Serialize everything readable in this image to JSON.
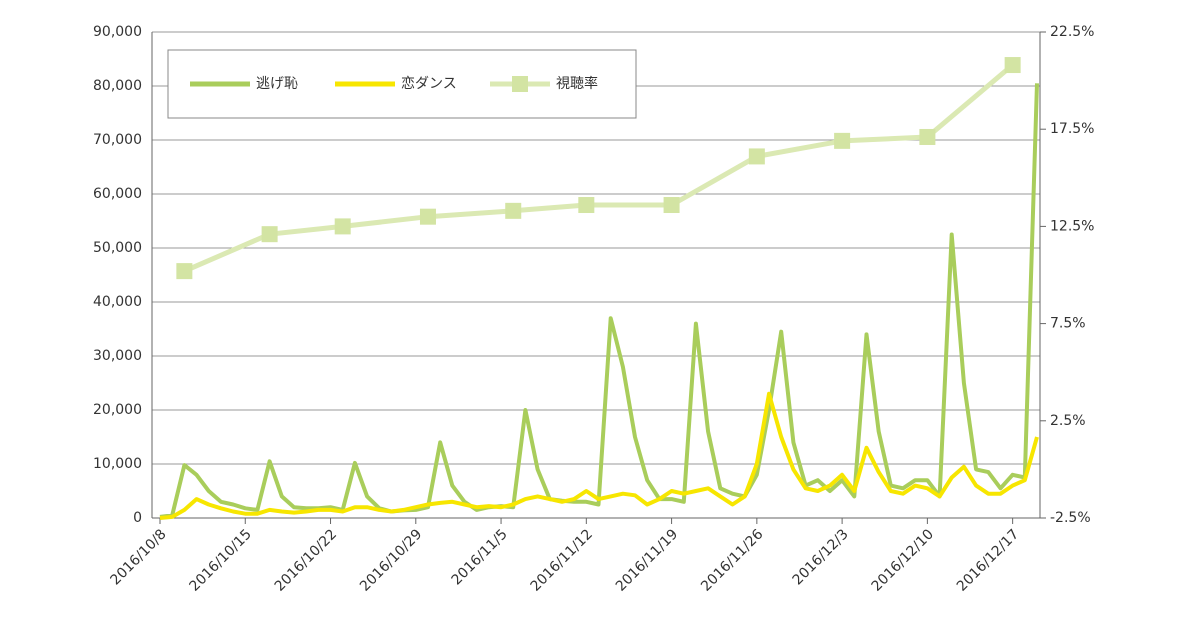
{
  "chart_data": {
    "type": "line",
    "x": [
      "2016/10/8",
      "2016/10/9",
      "2016/10/10",
      "2016/10/11",
      "2016/10/12",
      "2016/10/13",
      "2016/10/14",
      "2016/10/15",
      "2016/10/16",
      "2016/10/17",
      "2016/10/18",
      "2016/10/19",
      "2016/10/20",
      "2016/10/21",
      "2016/10/22",
      "2016/10/23",
      "2016/10/24",
      "2016/10/25",
      "2016/10/26",
      "2016/10/27",
      "2016/10/28",
      "2016/10/29",
      "2016/10/30",
      "2016/10/31",
      "2016/11/1",
      "2016/11/2",
      "2016/11/3",
      "2016/11/4",
      "2016/11/5",
      "2016/11/6",
      "2016/11/7",
      "2016/11/8",
      "2016/11/9",
      "2016/11/10",
      "2016/11/11",
      "2016/11/12",
      "2016/11/13",
      "2016/11/14",
      "2016/11/15",
      "2016/11/16",
      "2016/11/17",
      "2016/11/18",
      "2016/11/19",
      "2016/11/20",
      "2016/11/21",
      "2016/11/22",
      "2016/11/23",
      "2016/11/24",
      "2016/11/25",
      "2016/11/26",
      "2016/11/27",
      "2016/11/28",
      "2016/11/29",
      "2016/11/30",
      "2016/12/1",
      "2016/12/2",
      "2016/12/3",
      "2016/12/4",
      "2016/12/5",
      "2016/12/6",
      "2016/12/7",
      "2016/12/8",
      "2016/12/9",
      "2016/12/10",
      "2016/12/11",
      "2016/12/12",
      "2016/12/13",
      "2016/12/14",
      "2016/12/15",
      "2016/12/16",
      "2016/12/17",
      "2016/12/18",
      "2016/12/19"
    ],
    "xlim": [
      "2016/10/8",
      "2016/12/19"
    ],
    "xticks": [
      "2016/10/8",
      "2016/10/15",
      "2016/10/22",
      "2016/10/29",
      "2016/11/5",
      "2016/11/12",
      "2016/11/19",
      "2016/11/26",
      "2016/12/3",
      "2016/12/10",
      "2016/12/17"
    ],
    "series": [
      {
        "name": "逃げ恥",
        "color": "#a9cd5b",
        "values": [
          200,
          500,
          9800,
          8000,
          5000,
          3000,
          2500,
          1800,
          1500,
          10500,
          4000,
          2000,
          1800,
          1800,
          2000,
          1500,
          10200,
          4000,
          1800,
          1200,
          1400,
          1500,
          2000,
          14000,
          6000,
          3000,
          1500,
          2000,
          2200,
          2000,
          20000,
          9000,
          3500,
          3200,
          3000,
          3000,
          2500,
          37000,
          28000,
          15000,
          7000,
          3500,
          3500,
          3000,
          36000,
          16000,
          5500,
          4500,
          4000,
          8000,
          20000,
          34500,
          14000,
          6000,
          7000,
          5000,
          7000,
          4000,
          34000,
          16000,
          6000,
          5500,
          7000,
          7000,
          4000,
          52500,
          25000,
          9000,
          8500,
          5500,
          8000,
          7500,
          80500
        ]
      },
      {
        "name": "恋ダンス",
        "color": "#f7e600",
        "values": [
          0,
          200,
          1500,
          3500,
          2500,
          1800,
          1200,
          800,
          800,
          1500,
          1200,
          1000,
          1200,
          1500,
          1500,
          1200,
          2000,
          2000,
          1500,
          1200,
          1500,
          2000,
          2500,
          2800,
          3000,
          2500,
          2000,
          2200,
          2000,
          2500,
          3500,
          4000,
          3500,
          3000,
          3500,
          5000,
          3500,
          4000,
          4500,
          4200,
          2500,
          3500,
          5000,
          4500,
          5000,
          5500,
          4000,
          2500,
          4000,
          10000,
          23000,
          15000,
          9000,
          5500,
          5000,
          6000,
          8000,
          5000,
          13000,
          8500,
          5000,
          4500,
          6000,
          5500,
          4000,
          7500,
          9500,
          6000,
          4500,
          4500,
          6000,
          7000,
          15000
        ]
      },
      {
        "name": "視聴率",
        "color": "#dbe9b3",
        "axis": "y2",
        "marker": "square",
        "x": [
          "2016/10/10",
          "2016/10/17",
          "2016/10/23",
          "2016/10/30",
          "2016/11/6",
          "2016/11/12",
          "2016/11/19",
          "2016/11/26",
          "2016/12/3",
          "2016/12/10",
          "2016/12/17"
        ],
        "values": [
          10.2,
          12.1,
          12.5,
          13.0,
          13.3,
          13.6,
          13.6,
          16.1,
          16.9,
          17.1,
          20.8
        ]
      }
    ],
    "ylim": [
      0,
      90000
    ],
    "yticks": [
      0,
      {
        "value": 10000,
        "label": "10,000"
      },
      {
        "value": 20000,
        "label": "20,000"
      },
      {
        "value": 30000,
        "label": "30,000"
      },
      {
        "value": 40000,
        "label": "40,000"
      },
      {
        "value": 50000,
        "label": "50,000"
      },
      {
        "value": 60000,
        "label": "60,000"
      },
      {
        "value": 70000,
        "label": "70,000"
      },
      {
        "value": 80000,
        "label": "80,000"
      },
      {
        "value": 90000,
        "label": "90,000"
      }
    ],
    "y2lim": [
      -2.5,
      22.5
    ],
    "y2ticks": [
      {
        "value": -2.5,
        "label": "-2.5%"
      },
      {
        "value": 2.5,
        "label": "2.5%"
      },
      {
        "value": 7.5,
        "label": "7.5%"
      },
      {
        "value": 12.5,
        "label": "12.5%"
      },
      {
        "value": 17.5,
        "label": "17.5%"
      },
      {
        "value": 22.5,
        "label": "22.5%"
      }
    ],
    "grid": true,
    "legend": "top-left"
  }
}
